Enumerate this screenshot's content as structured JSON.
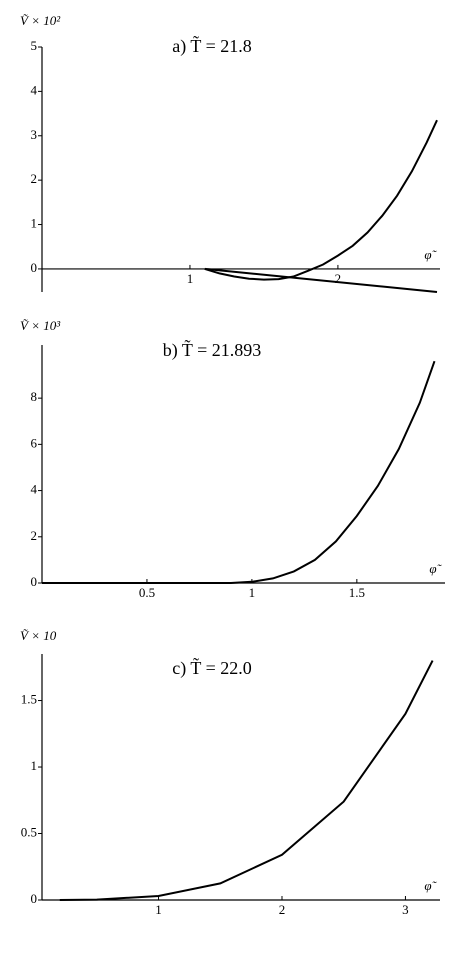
{
  "chart_data": [
    {
      "type": "line",
      "title": "a)    T̃ = 21.8",
      "ylabel": "Ṽ × 10²",
      "xlabel": "φ̃",
      "xlim": [
        0,
        2.69
      ],
      "ylim": [
        -0.52,
        5
      ],
      "xticks": [
        1,
        2
      ],
      "yticks": [
        0,
        1,
        2,
        3,
        4,
        5
      ],
      "series": [
        {
          "color": "#000000",
          "x": [
            1.1,
            1.2,
            1.3,
            1.4,
            1.5,
            1.6,
            1.7,
            1.8,
            1.9,
            2.0,
            2.1,
            2.2,
            2.3,
            2.4,
            2.5,
            2.6,
            2.67
          ],
          "values": [
            0,
            -0.1,
            -0.17,
            -0.22,
            -0.24,
            -0.23,
            -0.17,
            -0.04,
            0.1,
            0.3,
            0.52,
            0.82,
            1.2,
            1.65,
            2.2,
            2.85,
            3.35
          ]
        },
        {
          "color": "#000000",
          "x": [
            1.1,
            2.67
          ],
          "values": [
            0,
            -0.52
          ]
        }
      ]
    },
    {
      "type": "line",
      "title": "b)    T̃ = 21.893",
      "ylabel": "Ṽ × 10³",
      "xlabel": "φ̃",
      "xlim": [
        0,
        1.92
      ],
      "ylim": [
        0,
        10.3
      ],
      "xticks": [
        0.5,
        1,
        1.5
      ],
      "yticks": [
        0,
        2,
        4,
        6,
        8
      ],
      "series": [
        {
          "color": "#000000",
          "x": [
            0,
            0.9,
            1.0,
            1.1,
            1.2,
            1.3,
            1.4,
            1.5,
            1.6,
            1.7,
            1.8,
            1.87
          ],
          "values": [
            0,
            0,
            0.05,
            0.2,
            0.5,
            1.0,
            1.8,
            2.9,
            4.2,
            5.8,
            7.8,
            9.6
          ]
        }
      ]
    },
    {
      "type": "line",
      "title": "c)    T̃ = 22.0",
      "ylabel": "Ṽ × 10",
      "xlabel": "φ̃",
      "xlim": [
        0.056,
        3.28
      ],
      "ylim": [
        0,
        1.85
      ],
      "xticks": [
        1,
        2,
        3
      ],
      "yticks": [
        0,
        0.5,
        1,
        1.5
      ],
      "series": [
        {
          "color": "#000000",
          "x": [
            0.2,
            0.5,
            1.0,
            1.5,
            2.0,
            2.5,
            3.0,
            3.22
          ],
          "values": [
            0,
            0.003,
            0.03,
            0.125,
            0.34,
            0.74,
            1.4,
            1.8
          ]
        }
      ]
    }
  ]
}
